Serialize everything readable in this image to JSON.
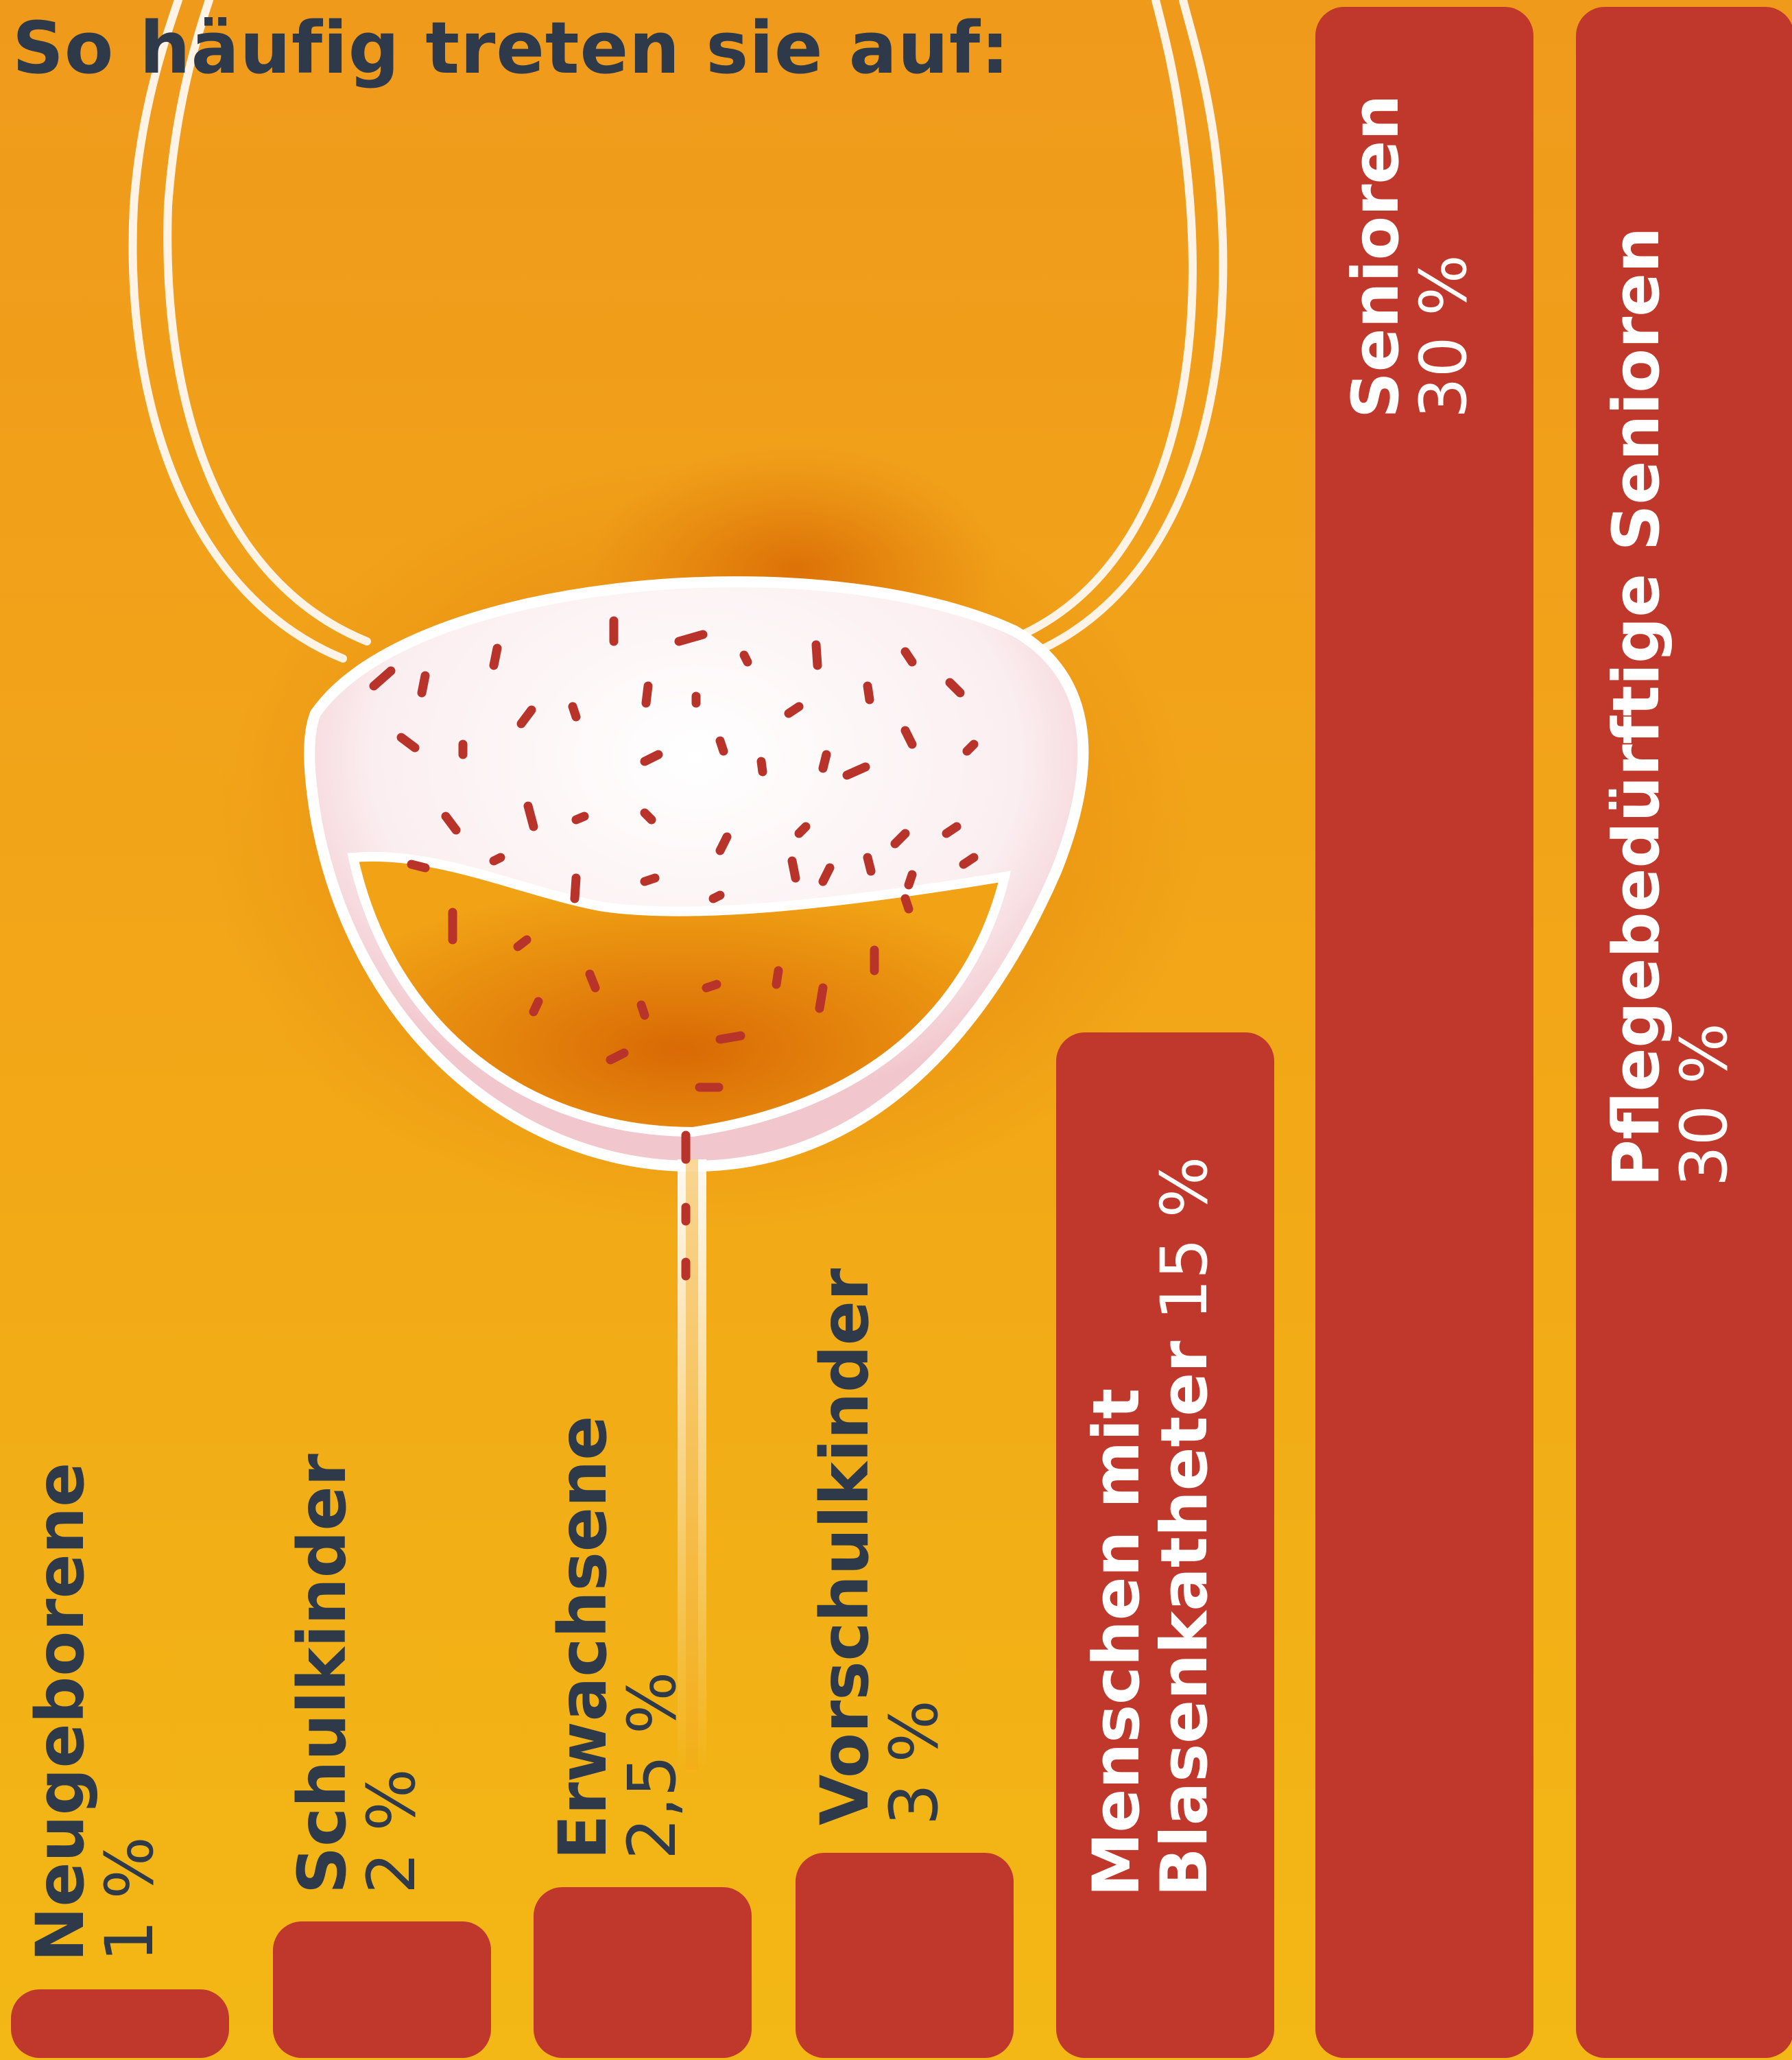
{
  "title": "So häufig treten sie auf:",
  "colors": {
    "bar": "#c0382b",
    "label_dark": "#2e3a4a",
    "label_light": "#ffffff",
    "bg_top": "#f09a1c",
    "bg_bottom": "#f3b815"
  },
  "illustration": "bladder-with-bacteria-icon",
  "chart_data": {
    "type": "bar",
    "orientation": "vertical",
    "unit": "%",
    "categories": [
      "Neugeborene",
      "Schulkinder",
      "Erwachsene",
      "Vorschulkinder",
      "Menschen mit Blasenkatheter",
      "Senioren",
      "Pflegebedürftige Senioren"
    ],
    "values": [
      1,
      2,
      2.5,
      3,
      15,
      30,
      30
    ],
    "value_labels": [
      "1 %",
      "2 %",
      "2,5 %",
      "3 %",
      "15 %",
      "30 %",
      "30 %"
    ],
    "name_lines": [
      [
        "Neugeborene"
      ],
      [
        "Schulkinder"
      ],
      [
        "Erwachsene"
      ],
      [
        "Vorschulkinder"
      ],
      [
        "Menschen mit",
        "Blasenkatheter"
      ],
      [
        "Senioren"
      ],
      [
        "Pflegebedürftige Senioren"
      ]
    ],
    "xlabel": "",
    "ylabel": "",
    "ylim": [
      0,
      30
    ]
  }
}
